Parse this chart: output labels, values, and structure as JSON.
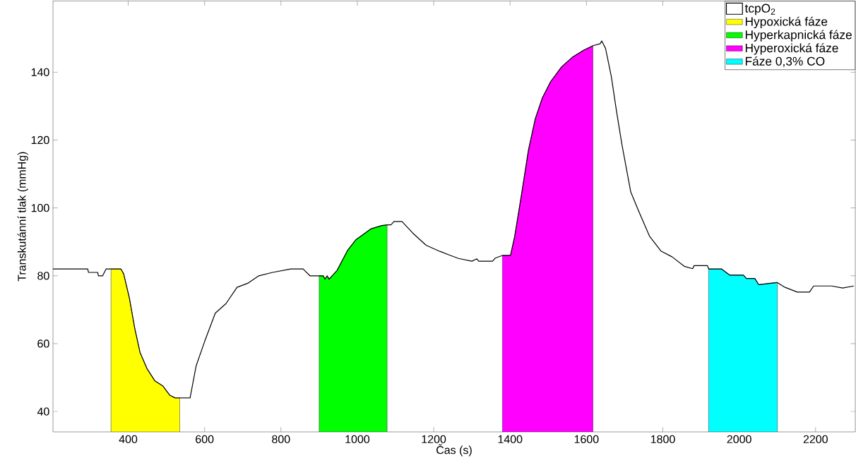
{
  "chart_data": {
    "type": "line",
    "xlabel": "Čas (s)",
    "ylabel": "Transkutánní tlak (mmHg)",
    "xlim": [
      203,
      2304
    ],
    "ylim": [
      34,
      161
    ],
    "xticks": [
      400,
      600,
      800,
      1000,
      1200,
      1400,
      1600,
      1800,
      2000,
      2200
    ],
    "yticks": [
      40,
      60,
      80,
      100,
      120,
      140
    ],
    "legend": "top right",
    "series": [
      {
        "name": "tcpO$_{2}$",
        "color": "#000000",
        "x": [
          203,
          294,
          296,
          320,
          322,
          333,
          342,
          355,
          381,
          388,
          403,
          417,
          431,
          449,
          470,
          491,
          509,
          523,
          535,
          562,
          578,
          600,
          628,
          656,
          685,
          713,
          742,
          778,
          826,
          858,
          876,
          900,
          911,
          915,
          921,
          926,
          947,
          975,
          996,
          1035,
          1064,
          1078,
          1088,
          1096,
          1117,
          1145,
          1180,
          1216,
          1244,
          1265,
          1300,
          1313,
          1318,
          1354,
          1361,
          1380,
          1401,
          1412,
          1430,
          1448,
          1466,
          1484,
          1506,
          1535,
          1564,
          1593,
          1617,
          1636,
          1640,
          1650,
          1665,
          1679,
          1693,
          1716,
          1737,
          1765,
          1795,
          1824,
          1856,
          1878,
          1882,
          1917,
          1920,
          1954,
          1975,
          2011,
          2019,
          2041,
          2051,
          2098,
          2100,
          2120,
          2152,
          2184,
          2195,
          2242,
          2271,
          2300
        ],
        "values": [
          82,
          82,
          81,
          81,
          80,
          80,
          82,
          82,
          82,
          80.6,
          73.5,
          64.6,
          57.4,
          52.7,
          49,
          47.5,
          44.8,
          44,
          44,
          44,
          53.5,
          60.6,
          69,
          71.8,
          76.6,
          77.8,
          80,
          81,
          82,
          82,
          80,
          80,
          80,
          79,
          80,
          79,
          81.6,
          87.6,
          90.6,
          93.8,
          94.8,
          95,
          95,
          96,
          96,
          92.6,
          89,
          87.2,
          86,
          85.1,
          84.3,
          85,
          84.3,
          84.3,
          85.2,
          86,
          86,
          91.6,
          104,
          117,
          126.3,
          132.3,
          137.2,
          141.6,
          144.5,
          146.5,
          147.8,
          148.4,
          149.2,
          147,
          138.8,
          128.3,
          118.6,
          104.7,
          99,
          91.7,
          87.3,
          85.6,
          82.8,
          82.1,
          83,
          83,
          82,
          82,
          80.2,
          80.2,
          79.2,
          79.2,
          77.4,
          78,
          78,
          76.6,
          75.2,
          75.2,
          77,
          77,
          76.4,
          77
        ]
      },
      {
        "name": "Hypoxická fáze",
        "type": "area",
        "color": "#ffff00",
        "x": [
          355,
          381,
          388,
          403,
          417,
          431,
          449,
          470,
          491,
          509,
          523,
          535
        ],
        "values": [
          82,
          82,
          80.6,
          73.5,
          64.6,
          57.4,
          52.7,
          49,
          47.5,
          44.8,
          44,
          44
        ]
      },
      {
        "name": "Hyperkapnická fáze",
        "type": "area",
        "color": "#00ff00",
        "x": [
          900,
          911,
          915,
          921,
          926,
          947,
          975,
          996,
          1035,
          1064,
          1078
        ],
        "values": [
          80,
          80,
          79,
          80,
          79,
          81.6,
          87.6,
          90.6,
          93.8,
          94.8,
          95
        ]
      },
      {
        "name": "Hyperoxická fáze",
        "type": "area",
        "color": "#ff00ff",
        "x": [
          1380,
          1401,
          1412,
          1430,
          1448,
          1466,
          1484,
          1506,
          1535,
          1564,
          1593,
          1617
        ],
        "values": [
          86,
          86,
          91.6,
          104,
          117,
          126.3,
          132.3,
          137.2,
          141.6,
          144.5,
          146.5,
          147.8
        ]
      },
      {
        "name": "Fáze 0,3% CO",
        "type": "area",
        "color": "#00ffff",
        "x": [
          1920,
          1954,
          1975,
          2011,
          2019,
          2041,
          2051,
          2098,
          2100
        ],
        "values": [
          82,
          82,
          80.2,
          80.2,
          79.2,
          79.2,
          77.4,
          78,
          78
        ]
      }
    ]
  }
}
